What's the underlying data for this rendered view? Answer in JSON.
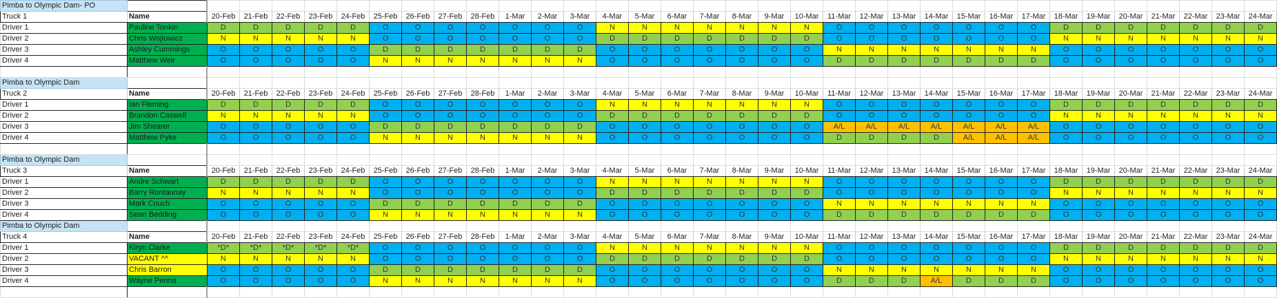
{
  "colors": {
    "D": "#92d050",
    "*D*": "#92d050",
    "N": "#ffff00",
    "O": "#00b0f0",
    "A/L": "#ffc000",
    "name_green": "#00b050",
    "name_yellow": "#ffff00",
    "title_bg": "#c5e3f5"
  },
  "name_header": "Name",
  "dates": [
    "20-Feb",
    "21-Feb",
    "22-Feb",
    "23-Feb",
    "24-Feb",
    "25-Feb",
    "26-Feb",
    "27-Feb",
    "28-Feb",
    "1-Mar",
    "2-Mar",
    "3-Mar",
    "4-Mar",
    "5-Mar",
    "6-Mar",
    "7-Mar",
    "8-Mar",
    "9-Mar",
    "10-Mar",
    "11-Mar",
    "12-Mar",
    "13-Mar",
    "14-Mar",
    "15-Mar",
    "16-Mar",
    "17-Mar",
    "18-Mar",
    "19-Mar",
    "20-Mar",
    "21-Mar",
    "22-Mar",
    "23-Mar",
    "24-Mar"
  ],
  "blocks": [
    {
      "title": "Pimba to Olympic Dam- PO",
      "truck": "Truck 1",
      "blank_after": true,
      "drivers": [
        {
          "label": "Driver 1",
          "name": "Pauline Tonkin",
          "name_color": "name_green",
          "shifts": [
            "D",
            "D",
            "D",
            "D",
            "D",
            "O",
            "O",
            "O",
            "O",
            "O",
            "O",
            "O",
            "N",
            "N",
            "N",
            "N",
            "N",
            "N",
            "N",
            "O",
            "O",
            "O",
            "O",
            "O",
            "O",
            "O",
            "D",
            "D",
            "D",
            "D",
            "D",
            "D",
            "D"
          ]
        },
        {
          "label": "Driver 2",
          "name": "Chris Wojtowicz",
          "name_color": "name_green",
          "shifts": [
            "N",
            "N",
            "N",
            "N",
            "N",
            "O",
            "O",
            "O",
            "O",
            "O",
            "O",
            "O",
            "D",
            "D",
            "D",
            "D",
            "D",
            "D",
            "D",
            "O",
            "O",
            "O",
            "O",
            "O",
            "O",
            "O",
            "N",
            "N",
            "N",
            "N",
            "N",
            "N",
            "N"
          ]
        },
        {
          "label": "Driver 3",
          "name": "Ashley Cummings",
          "name_color": "name_green",
          "shifts": [
            "O",
            "O",
            "O",
            "O",
            "O",
            "D",
            "D",
            "D",
            "D",
            "D",
            "D",
            "D",
            "O",
            "O",
            "O",
            "O",
            "O",
            "O",
            "O",
            "N",
            "N",
            "N",
            "N",
            "N",
            "N",
            "N",
            "O",
            "O",
            "O",
            "O",
            "O",
            "O",
            "O"
          ]
        },
        {
          "label": "Driver 4",
          "name": "Matthew Weir",
          "name_color": "name_green",
          "shifts": [
            "O",
            "O",
            "O",
            "O",
            "O",
            "N",
            "N",
            "N",
            "N",
            "N",
            "N",
            "N",
            "O",
            "O",
            "O",
            "O",
            "O",
            "O",
            "O",
            "D",
            "D",
            "D",
            "D",
            "D",
            "D",
            "D",
            "O",
            "O",
            "O",
            "O",
            "O",
            "O",
            "O"
          ]
        }
      ]
    },
    {
      "title": "Pimba to Olympic Dam",
      "truck": "Truck 2",
      "blank_after": true,
      "drivers": [
        {
          "label": "Driver 1",
          "name": "Ian Fleming",
          "name_color": "name_green",
          "shifts": [
            "D",
            "D",
            "D",
            "D",
            "D",
            "O",
            "O",
            "O",
            "O",
            "O",
            "O",
            "O",
            "N",
            "N",
            "N",
            "N",
            "N",
            "N",
            "N",
            "O",
            "O",
            "O",
            "O",
            "O",
            "O",
            "O",
            "D",
            "D",
            "D",
            "D",
            "D",
            "D",
            "D"
          ]
        },
        {
          "label": "Driver 2",
          "name": "Brandon Caswell",
          "name_color": "name_green",
          "shifts": [
            "N",
            "N",
            "N",
            "N",
            "N",
            "O",
            "O",
            "O",
            "O",
            "O",
            "O",
            "O",
            "D",
            "D",
            "D",
            "D",
            "D",
            "D",
            "D",
            "O",
            "O",
            "O",
            "O",
            "O",
            "O",
            "O",
            "N",
            "N",
            "N",
            "N",
            "N",
            "N",
            "N"
          ]
        },
        {
          "label": "Driver 3",
          "name": "Jim Shearer",
          "name_color": "name_green",
          "shifts": [
            "O",
            "O",
            "O",
            "O",
            "O",
            "D",
            "D",
            "D",
            "D",
            "D",
            "D",
            "D",
            "O",
            "O",
            "O",
            "O",
            "O",
            "O",
            "O",
            "A/L",
            "A/L",
            "A/L",
            "A/L",
            "A/L",
            "A/L",
            "A/L",
            "O",
            "O",
            "O",
            "O",
            "O",
            "O",
            "O"
          ]
        },
        {
          "label": "Driver 4",
          "name": "Matthew Pyke",
          "name_color": "name_green",
          "shifts": [
            "O",
            "O",
            "O",
            "O",
            "O",
            "N",
            "N",
            "N",
            "N",
            "N",
            "N",
            "N",
            "O",
            "O",
            "O",
            "O",
            "O",
            "O",
            "O",
            "D",
            "D",
            "D",
            "D",
            "A/L",
            "A/L",
            "A/L",
            "O",
            "O",
            "O",
            "O",
            "O",
            "O",
            "O"
          ]
        }
      ]
    },
    {
      "title": "Pimba to Olympic Dam",
      "truck": "Truck 3",
      "blank_after": false,
      "drivers": [
        {
          "label": "Driver 1",
          "name": "Andre Schwart",
          "name_color": "name_green",
          "shifts": [
            "D",
            "D",
            "D",
            "D",
            "D",
            "O",
            "O",
            "O",
            "O",
            "O",
            "O",
            "O",
            "N",
            "N",
            "N",
            "N",
            "N",
            "N",
            "N",
            "O",
            "O",
            "O",
            "O",
            "O",
            "O",
            "O",
            "D",
            "D",
            "D",
            "D",
            "D",
            "D",
            "D"
          ]
        },
        {
          "label": "Driver 2",
          "name": "Barry Rontaunay",
          "name_color": "name_green",
          "shifts": [
            "N",
            "N",
            "N",
            "N",
            "N",
            "O",
            "O",
            "O",
            "O",
            "O",
            "O",
            "O",
            "D",
            "D",
            "D",
            "D",
            "D",
            "D",
            "D",
            "O",
            "O",
            "O",
            "O",
            "O",
            "O",
            "O",
            "N",
            "N",
            "N",
            "N",
            "N",
            "N",
            "N"
          ]
        },
        {
          "label": "Driver 3",
          "name": "Mark Couch",
          "name_color": "name_green",
          "shifts": [
            "O",
            "O",
            "O",
            "O",
            "O",
            "D",
            "D",
            "D",
            "D",
            "D",
            "D",
            "D",
            "O",
            "O",
            "O",
            "O",
            "O",
            "O",
            "O",
            "N",
            "N",
            "N",
            "N",
            "N",
            "N",
            "N",
            "O",
            "O",
            "O",
            "O",
            "O",
            "O",
            "O"
          ]
        },
        {
          "label": "Driver 4",
          "name": "Sean Bedding",
          "name_color": "name_green",
          "shifts": [
            "O",
            "O",
            "O",
            "O",
            "O",
            "N",
            "N",
            "N",
            "N",
            "N",
            "N",
            "N",
            "O",
            "O",
            "O",
            "O",
            "O",
            "O",
            "O",
            "D",
            "D",
            "D",
            "D",
            "D",
            "D",
            "D",
            "O",
            "O",
            "O",
            "O",
            "O",
            "O",
            "O"
          ]
        }
      ]
    },
    {
      "title": "Pimba to Olympic Dam",
      "truck": "Truck 4",
      "blank_after": true,
      "drivers": [
        {
          "label": "Driver 1",
          "name": "Kiryn Clarke",
          "name_color": "name_green",
          "shifts": [
            "*D*",
            "*D*",
            "*D*",
            "*D*",
            "*D*",
            "O",
            "O",
            "O",
            "O",
            "O",
            "O",
            "O",
            "N",
            "N",
            "N",
            "N",
            "N",
            "N",
            "N",
            "O",
            "O",
            "O",
            "O",
            "O",
            "O",
            "O",
            "D",
            "D",
            "D",
            "D",
            "D",
            "D",
            "D"
          ]
        },
        {
          "label": "Driver 2",
          "name": "VACANT ^^",
          "name_color": "name_yellow",
          "shifts": [
            "N",
            "N",
            "N",
            "N",
            "N",
            "O",
            "O",
            "O",
            "O",
            "O",
            "O",
            "O",
            "D",
            "D",
            "D",
            "D",
            "D",
            "D",
            "D",
            "O",
            "O",
            "O",
            "O",
            "O",
            "O",
            "O",
            "N",
            "N",
            "N",
            "N",
            "N",
            "N",
            "N"
          ]
        },
        {
          "label": "Driver 3",
          "name": "Chris Barron",
          "name_color": "name_yellow",
          "shifts": [
            "O",
            "O",
            "O",
            "O",
            "O",
            "D",
            "D",
            "D",
            "D",
            "D",
            "D",
            "D",
            "O",
            "O",
            "O",
            "O",
            "O",
            "O",
            "O",
            "N",
            "N",
            "N",
            "N",
            "N",
            "N",
            "N",
            "O",
            "O",
            "O",
            "O",
            "O",
            "O",
            "O"
          ]
        },
        {
          "label": "Driver 4",
          "name": "Wayne Penna",
          "name_color": "name_green",
          "shifts": [
            "O",
            "O",
            "O",
            "O",
            "O",
            "N",
            "N",
            "N",
            "N",
            "N",
            "N",
            "N",
            "O",
            "O",
            "O",
            "O",
            "O",
            "O",
            "O",
            "D",
            "D",
            "D",
            "A/L",
            "D",
            "D",
            "D",
            "O",
            "O",
            "O",
            "O",
            "O",
            "O",
            "O"
          ]
        }
      ]
    }
  ]
}
